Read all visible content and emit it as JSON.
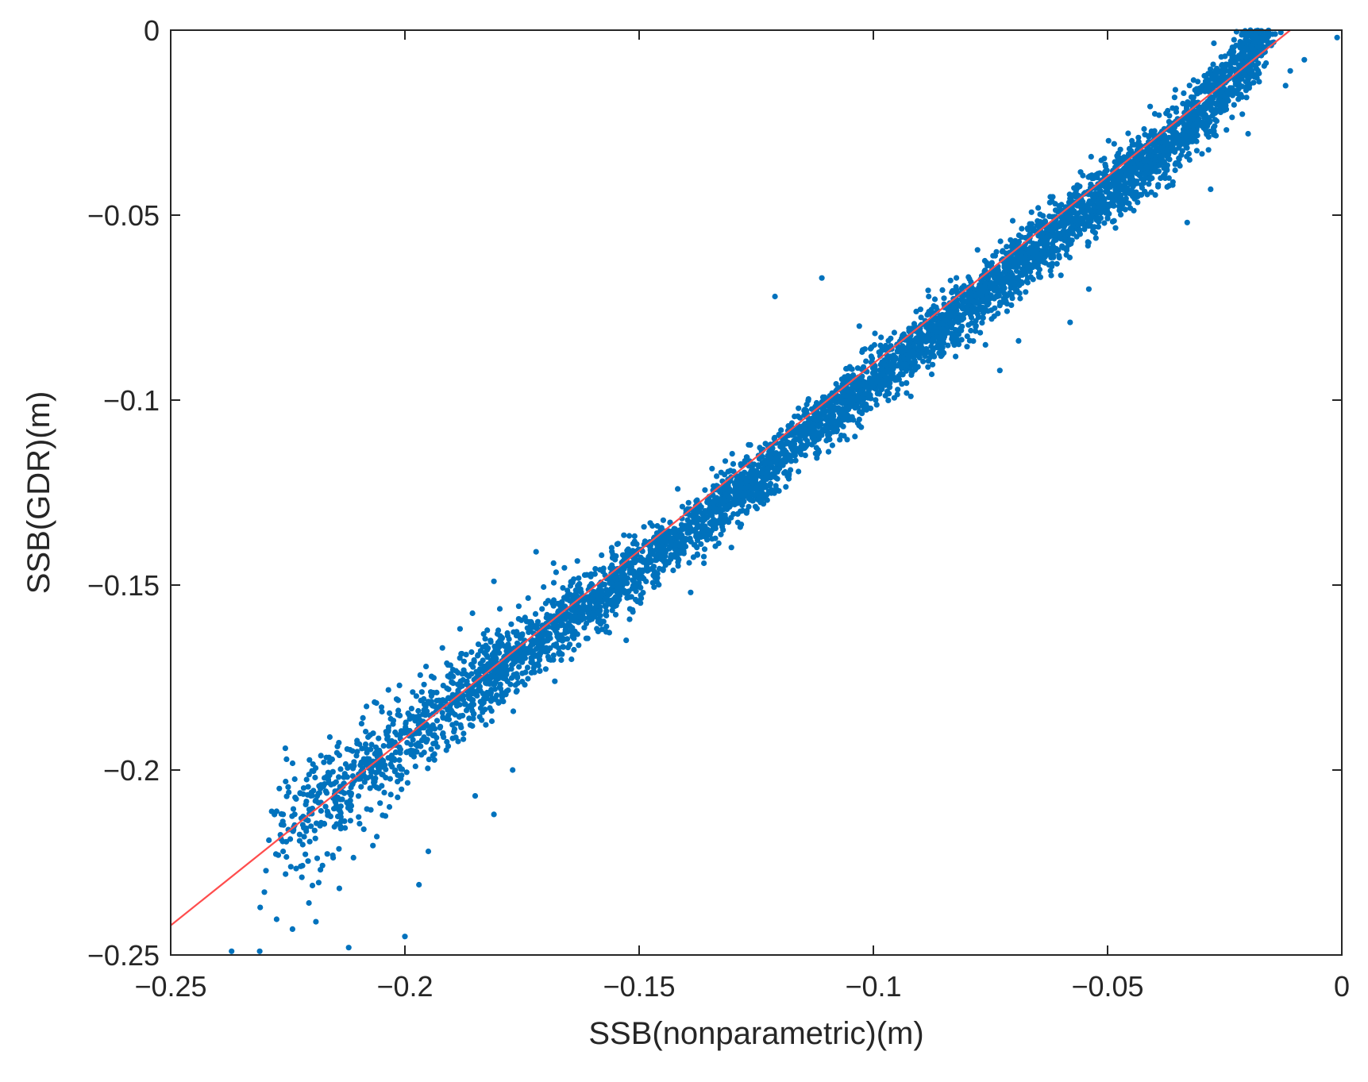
{
  "chart_data": {
    "type": "scatter",
    "title": "",
    "xlabel": "SSB(nonparametric)(m)",
    "ylabel": "SSB(GDR)(m)",
    "xlim": [
      -0.25,
      0
    ],
    "ylim": [
      -0.25,
      0
    ],
    "x_ticks": [
      -0.25,
      -0.2,
      -0.15,
      -0.1,
      -0.05,
      0
    ],
    "x_tick_labels": [
      "−0.25",
      "−0.2",
      "−0.15",
      "−0.1",
      "−0.05",
      "0"
    ],
    "y_ticks": [
      -0.25,
      -0.2,
      -0.15,
      -0.1,
      -0.05,
      0
    ],
    "y_tick_labels": [
      "−0.25",
      "−0.2",
      "−0.15",
      "−0.1",
      "−0.05",
      "0"
    ],
    "grid": false,
    "legend": "none",
    "colors": {
      "points": "#0072bd",
      "fit_line": "#ff4d4d",
      "axes": "#262626"
    },
    "series": [
      {
        "kind": "points",
        "trend_x": [
          -0.228,
          -0.22,
          -0.21,
          -0.2,
          -0.19,
          -0.18,
          -0.17,
          -0.16,
          -0.15,
          -0.14,
          -0.13,
          -0.12,
          -0.11,
          -0.1,
          -0.09,
          -0.08,
          -0.07,
          -0.06,
          -0.05,
          -0.04,
          -0.03,
          -0.02,
          -0.016
        ],
        "trend_y": [
          -0.218,
          -0.212,
          -0.202,
          -0.192,
          -0.182,
          -0.172,
          -0.163,
          -0.154,
          -0.145,
          -0.136,
          -0.126,
          -0.116,
          -0.105,
          -0.094,
          -0.085,
          -0.075,
          -0.064,
          -0.053,
          -0.044,
          -0.034,
          -0.022,
          -0.008,
          0
        ],
        "trend_spread": [
          0.02,
          0.018,
          0.016,
          0.014,
          0.013,
          0.012,
          0.011,
          0.01,
          0.009,
          0.008,
          0.008,
          0.008,
          0.008,
          0.008,
          0.008,
          0.008,
          0.009,
          0.009,
          0.009,
          0.009,
          0.009,
          0.008,
          0.004
        ],
        "outliers": [
          [
            -0.237,
            -0.249
          ],
          [
            -0.231,
            -0.249
          ],
          [
            -0.212,
            -0.248
          ],
          [
            -0.2,
            -0.245
          ],
          [
            -0.224,
            -0.243
          ],
          [
            -0.219,
            -0.241
          ],
          [
            -0.23,
            -0.233
          ],
          [
            -0.214,
            -0.232
          ],
          [
            -0.197,
            -0.231
          ],
          [
            -0.222,
            -0.229
          ],
          [
            -0.226,
            -0.222
          ],
          [
            -0.206,
            -0.218
          ],
          [
            -0.195,
            -0.222
          ],
          [
            -0.181,
            -0.212
          ],
          [
            -0.177,
            -0.2
          ],
          [
            -0.185,
            -0.207
          ],
          [
            -0.168,
            -0.176
          ],
          [
            -0.155,
            -0.158
          ],
          [
            -0.139,
            -0.152
          ],
          [
            -0.131,
            -0.126
          ],
          [
            -0.118,
            -0.12
          ],
          [
            -0.108,
            -0.108
          ],
          [
            -0.092,
            -0.099
          ],
          [
            -0.073,
            -0.092
          ],
          [
            -0.069,
            -0.084
          ],
          [
            -0.058,
            -0.079
          ],
          [
            -0.054,
            -0.07
          ],
          [
            -0.033,
            -0.052
          ],
          [
            -0.028,
            -0.043
          ],
          [
            -0.02,
            -0.028
          ],
          [
            -0.012,
            -0.015
          ],
          [
            -0.011,
            -0.011
          ],
          [
            -0.008,
            -0.008
          ],
          [
            -0.001,
            -0.002
          ],
          [
            -0.121,
            -0.072
          ],
          [
            -0.111,
            -0.067
          ],
          [
            -0.103,
            -0.08
          ],
          [
            -0.172,
            -0.141
          ],
          [
            -0.181,
            -0.149
          ],
          [
            -0.192,
            -0.167
          ],
          [
            -0.205,
            -0.183
          ],
          [
            -0.214,
            -0.196
          ],
          [
            -0.226,
            -0.212
          ]
        ]
      },
      {
        "kind": "line",
        "x": [
          -0.25,
          -0.011
        ],
        "y": [
          -0.242,
          0
        ]
      }
    ]
  }
}
